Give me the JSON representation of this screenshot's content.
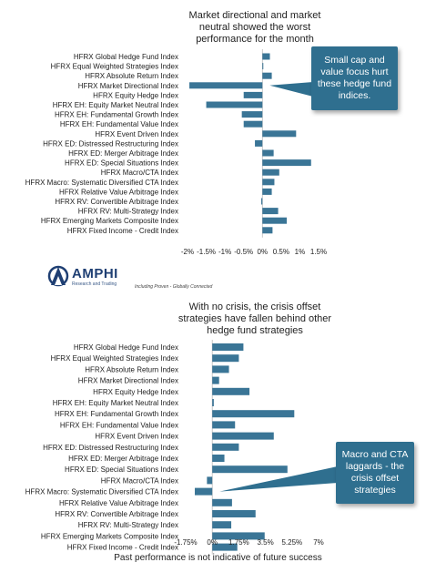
{
  "chart_data": [
    {
      "type": "bar",
      "orientation": "horizontal",
      "title": "Market directional and market neutral showed the worst performance for the month",
      "categories": [
        "HFRX Global Hedge Fund Index",
        "HFRX Equal Weighted Strategies Index",
        "HFRX Absolute Return Index",
        "HFRX Market Directional Index",
        "HFRX Equity Hedge Index",
        "HFRX EH: Equity Market Neutral Index",
        "HFRX EH: Fundamental Growth Index",
        "HFRX EH: Fundamental Value Index",
        "HFRX Event Driven Index",
        "HFRX ED: Distressed Restructuring Index",
        "HFRX ED: Merger Arbitrage Index",
        "HFRX ED: Special Situations Index",
        "HFRX Macro/CTA Index",
        "HFRX Macro: Systematic Diversified CTA Index",
        "HFRX Relative Value Arbitrage Index",
        "HFRX RV: Convertible Arbitrage Index",
        "HFRX RV: Multi-Strategy Index",
        "HFRX Emerging Markets Composite Index",
        "HFRX Fixed Income - Credit Index"
      ],
      "values": [
        0.2,
        0.02,
        0.25,
        -1.95,
        -0.5,
        -1.5,
        -0.55,
        -0.5,
        0.9,
        -0.2,
        0.3,
        1.3,
        0.45,
        0.32,
        0.25,
        -0.03,
        0.42,
        0.65,
        0.27
      ],
      "xlim": [
        -2,
        1.5
      ],
      "ticks": [
        -2,
        -1.5,
        -1,
        -0.5,
        0,
        0.5,
        1,
        1.5
      ],
      "tick_labels": [
        "-2%",
        "-1.5%",
        "-1%",
        "-0.5%",
        "0%",
        "0.5%",
        "1%",
        "1.5%"
      ],
      "callout": "Small cap and value focus hurt these hedge fund indices.",
      "callout_category_index": 3
    },
    {
      "type": "bar",
      "orientation": "horizontal",
      "title": "With no crisis, the crisis offset strategies have fallen behind other hedge fund strategies",
      "categories": [
        "HFRX Global Hedge Fund Index",
        "HFRX Equal Weighted Strategies Index",
        "HFRX Absolute Return Index",
        "HFRX Market Directional Index",
        "HFRX Equity Hedge Index",
        "HFRX EH: Equity Market Neutral Index",
        "HFRX EH: Fundamental Growth Index",
        "HFRX EH: Fundamental Value Index",
        "HFRX Event Driven Index",
        "HFRX ED: Distressed Restructuring Index",
        "HFRX ED: Merger Arbitrage Index",
        "HFRX ED: Special Situations Index",
        "HFRX Macro/CTA Index",
        "HFRX Macro: Systematic Diversified CTA Index",
        "HFRX Relative Value Arbitrage Index",
        "HFRX RV: Convertible Arbitrage Index",
        "HFRX RV: Multi-Strategy Index",
        "HFRX Emerging Markets Composite Index",
        "HFRX Fixed Income - Credit Index"
      ],
      "values": [
        2.05,
        1.75,
        1.1,
        0.45,
        2.45,
        0.1,
        5.4,
        1.5,
        4.05,
        1.75,
        0.8,
        4.95,
        -0.35,
        -1.15,
        1.3,
        2.85,
        1.25,
        3.45,
        1.65
      ],
      "xlim": [
        -1.75,
        7
      ],
      "ticks": [
        -1.75,
        0,
        1.75,
        3.5,
        5.25,
        7
      ],
      "tick_labels": [
        "-1.75%",
        "0%",
        "1.75%",
        "3.5%",
        "5.25%",
        "7%"
      ],
      "callout": "Macro and CTA laggards - the crisis offset strategies",
      "callout_category_index": 13
    }
  ],
  "branding": {
    "logo_name": "AMPHI",
    "logo_subtitle": "Research and Trading",
    "tagline": "Including Proven - Globally Connected",
    "logo_icon": "amphi-logo-icon"
  },
  "footer": "Past performance is not indicative of future success",
  "colors": {
    "bar": "#3a7596",
    "callout_bg": "#2f6f8f"
  }
}
